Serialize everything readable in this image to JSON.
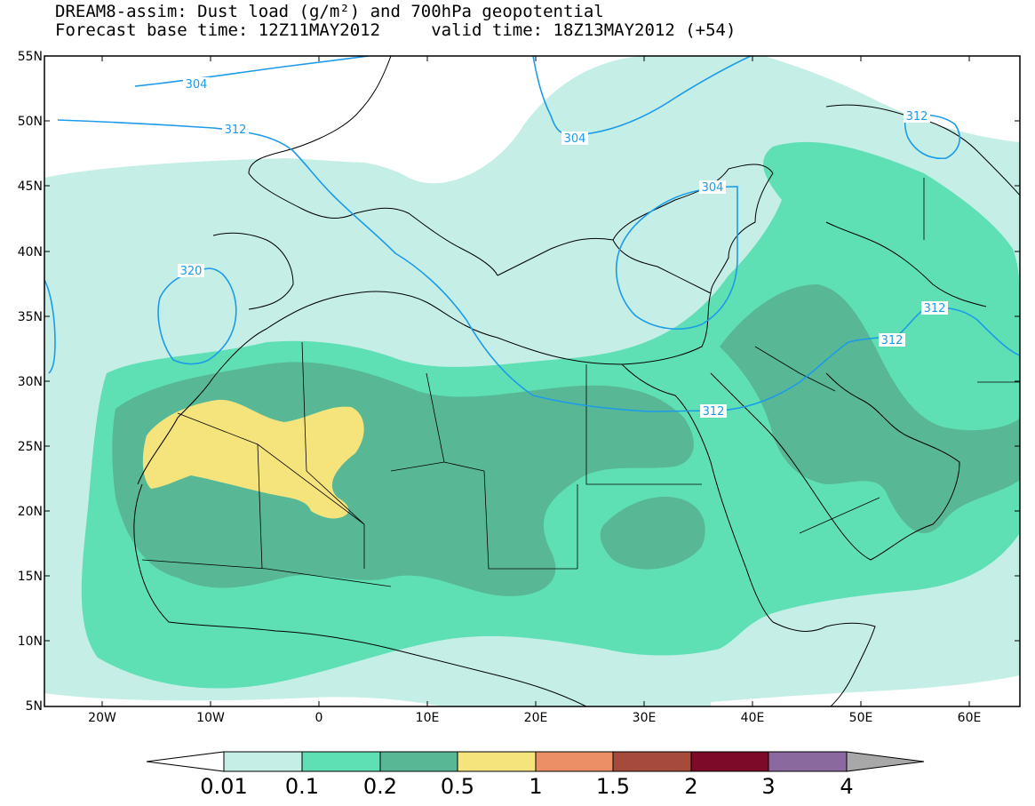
{
  "header": {
    "title_line1": "DREAM8-assim: Dust load (g/m²) and 700hPa geopotential",
    "title_line2": "Forecast base time: 12Z11MAY2012     valid time: 18Z13MAY2012 (+54)"
  },
  "map": {
    "projection": "lat-lon",
    "lat_range": [
      5,
      55
    ],
    "lon_range": [
      -25,
      65
    ],
    "lat_ticks": [
      "55N",
      "50N",
      "45N",
      "40N",
      "35N",
      "30N",
      "25N",
      "20N",
      "15N",
      "10N",
      "5N"
    ],
    "lon_ticks": [
      "20W",
      "10W",
      "0",
      "10E",
      "20E",
      "30E",
      "40E",
      "50E",
      "60E"
    ],
    "colors": {
      "level1": "#c4eee6",
      "level2": "#5fe0b4",
      "level3": "#58b896",
      "level4": "#f5e37c",
      "contour": "#1c9be8",
      "coast": "#000000"
    },
    "contour_labels": [
      {
        "text": "304"
      },
      {
        "text": "312"
      },
      {
        "text": "304"
      },
      {
        "text": "304"
      },
      {
        "text": "312"
      },
      {
        "text": "320"
      },
      {
        "text": "312"
      },
      {
        "text": "312"
      },
      {
        "text": "312"
      }
    ]
  },
  "colorbar": {
    "labels": [
      "0.01",
      "0.1",
      "0.2",
      "0.5",
      "1",
      "1.5",
      "2",
      "3",
      "4"
    ],
    "colors": [
      "#c4eee6",
      "#5fe0b4",
      "#58b896",
      "#f5e37c",
      "#ec8e66",
      "#a64b3c",
      "#7c0a28",
      "#8a6a9e"
    ],
    "under_color": "#ffffff",
    "over_color": "#a8a8a8"
  }
}
